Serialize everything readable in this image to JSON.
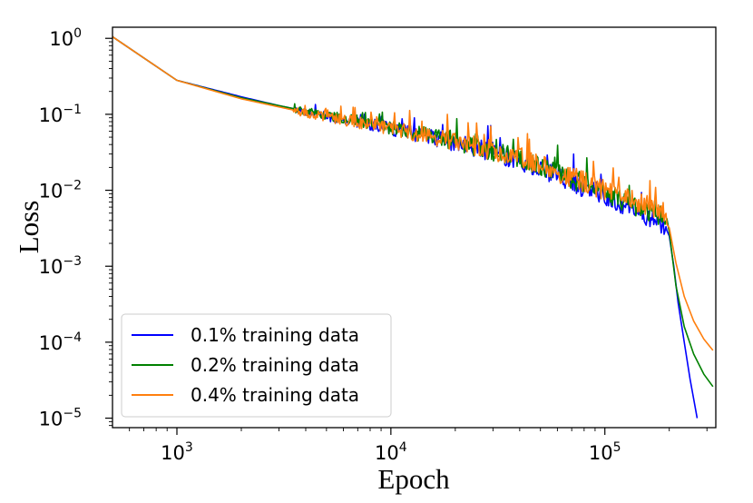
{
  "chart_data": {
    "type": "line",
    "xscale": "log",
    "yscale": "log",
    "xlabel": "Epoch",
    "ylabel": "Loss",
    "xlim": [
      500,
      330000
    ],
    "ylim": [
      7.5e-06,
      1.4
    ],
    "xticks": [
      {
        "value": 1000,
        "base": "10",
        "exp": "3"
      },
      {
        "value": 10000,
        "base": "10",
        "exp": "4"
      },
      {
        "value": 100000,
        "base": "10",
        "exp": "5"
      }
    ],
    "yticks": [
      {
        "value": 1,
        "base": "10",
        "exp": "0"
      },
      {
        "value": 0.1,
        "base": "10",
        "exp": "−1"
      },
      {
        "value": 0.01,
        "base": "10",
        "exp": "−2"
      },
      {
        "value": 0.001,
        "base": "10",
        "exp": "−3"
      },
      {
        "value": 0.0001,
        "base": "10",
        "exp": "−4"
      },
      {
        "value": 1e-05,
        "base": "10",
        "exp": "−5"
      }
    ],
    "legend_location": "lower-left",
    "series": [
      {
        "name": "0.1% training data",
        "color": "#0000ff",
        "points": [
          [
            500,
            1.05
          ],
          [
            1000,
            0.28
          ],
          [
            2000,
            0.17
          ],
          [
            3000,
            0.13
          ],
          [
            4000,
            0.11
          ],
          [
            6000,
            0.085
          ],
          [
            8000,
            0.075
          ],
          [
            10000,
            0.065
          ],
          [
            15000,
            0.052
          ],
          [
            20000,
            0.043
          ],
          [
            30000,
            0.033
          ],
          [
            40000,
            0.025
          ],
          [
            50000,
            0.02
          ],
          [
            70000,
            0.013
          ],
          [
            100000,
            0.0085
          ],
          [
            150000,
            0.005
          ],
          [
            195000,
            0.0035
          ]
        ],
        "noise": {
          "start": 3500,
          "end": 200000,
          "amplitude_decades": 0.13
        },
        "tail": [
          [
            200000,
            0.0025
          ],
          [
            210000,
            0.001
          ],
          [
            220000,
            0.00033
          ],
          [
            235000,
            0.0001
          ],
          [
            250000,
            3.3e-05
          ],
          [
            270000,
            1e-05
          ]
        ]
      },
      {
        "name": "0.2% training data",
        "color": "#008000",
        "points": [
          [
            500,
            1.05
          ],
          [
            1000,
            0.28
          ],
          [
            2000,
            0.165
          ],
          [
            3000,
            0.13
          ],
          [
            4000,
            0.11
          ],
          [
            6000,
            0.09
          ],
          [
            8000,
            0.078
          ],
          [
            10000,
            0.068
          ],
          [
            15000,
            0.054
          ],
          [
            20000,
            0.045
          ],
          [
            30000,
            0.034
          ],
          [
            40000,
            0.027
          ],
          [
            50000,
            0.021
          ],
          [
            70000,
            0.0145
          ],
          [
            100000,
            0.0095
          ],
          [
            150000,
            0.0058
          ],
          [
            195000,
            0.004
          ]
        ],
        "noise": {
          "start": 3500,
          "end": 200000,
          "amplitude_decades": 0.13
        },
        "tail": [
          [
            200000,
            0.0028
          ],
          [
            215000,
            0.00055
          ],
          [
            235000,
            0.00016
          ],
          [
            260000,
            7e-05
          ],
          [
            290000,
            3.8e-05
          ],
          [
            320000,
            2.6e-05
          ]
        ]
      },
      {
        "name": "0.4% training data",
        "color": "#ff7f0e",
        "points": [
          [
            500,
            1.05
          ],
          [
            1000,
            0.28
          ],
          [
            2000,
            0.16
          ],
          [
            3000,
            0.125
          ],
          [
            4000,
            0.105
          ],
          [
            6000,
            0.085
          ],
          [
            8000,
            0.075
          ],
          [
            10000,
            0.066
          ],
          [
            15000,
            0.054
          ],
          [
            20000,
            0.045
          ],
          [
            30000,
            0.035
          ],
          [
            40000,
            0.028
          ],
          [
            50000,
            0.022
          ],
          [
            70000,
            0.0155
          ],
          [
            100000,
            0.0105
          ],
          [
            150000,
            0.0068
          ],
          [
            195000,
            0.005
          ]
        ],
        "noise": {
          "start": 3500,
          "end": 200000,
          "amplitude_decades": 0.14
        },
        "tail": [
          [
            200000,
            0.0032
          ],
          [
            215000,
            0.0011
          ],
          [
            235000,
            0.0004
          ],
          [
            260000,
            0.00019
          ],
          [
            290000,
            0.00011
          ],
          [
            320000,
            7.8e-05
          ]
        ]
      }
    ]
  }
}
